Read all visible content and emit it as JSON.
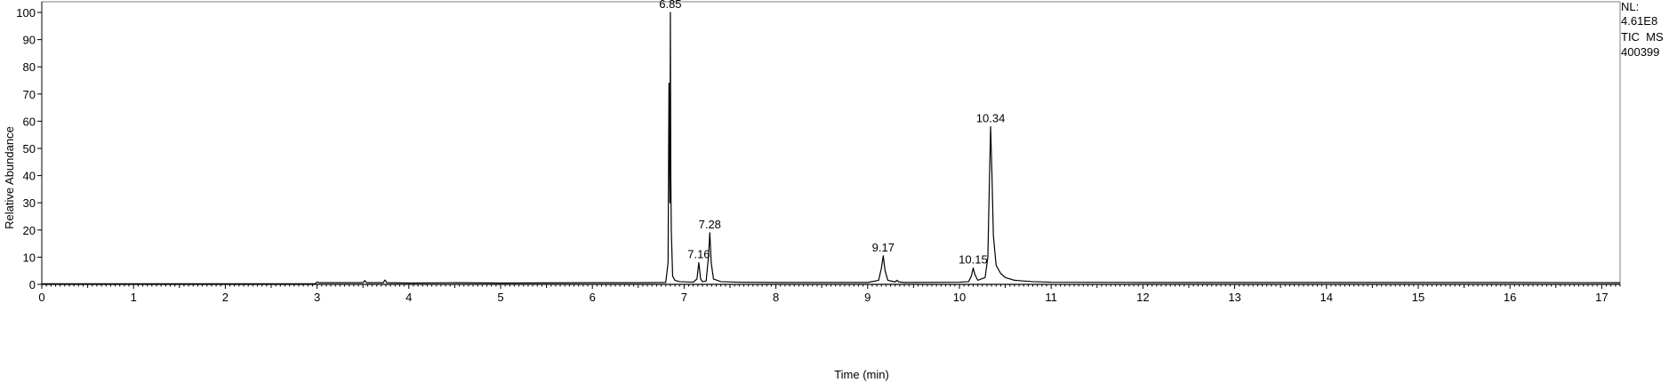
{
  "chart_data": {
    "type": "line",
    "title": "",
    "xlabel": "Time (min)",
    "ylabel": "Relative Abundance",
    "xlim": [
      0,
      17.2
    ],
    "ylim": [
      0,
      100
    ],
    "x_ticks": [
      0,
      1,
      2,
      3,
      4,
      5,
      6,
      7,
      8,
      9,
      10,
      11,
      12,
      13,
      14,
      15,
      16,
      17
    ],
    "y_ticks": [
      0,
      10,
      20,
      30,
      40,
      50,
      60,
      70,
      80,
      90,
      100
    ],
    "grid": false,
    "info": {
      "nl_label": "NL:",
      "nl_value": "4.61E8",
      "scan_type": "TIC  MS",
      "sample": "400399"
    },
    "peaks": [
      {
        "rt": 6.85,
        "label": "6.85",
        "height": 100
      },
      {
        "rt": 7.16,
        "label": "7.16",
        "height": 8
      },
      {
        "rt": 7.28,
        "label": "7.28",
        "height": 19
      },
      {
        "rt": 9.17,
        "label": "9.17",
        "height": 10.5
      },
      {
        "rt": 10.15,
        "label": "10.15",
        "height": 6
      },
      {
        "rt": 10.34,
        "label": "10.34",
        "height": 58
      }
    ],
    "series": [
      {
        "name": "TIC",
        "x": [
          0,
          2.98,
          3.0,
          3.02,
          3.5,
          3.52,
          3.54,
          3.72,
          3.74,
          3.76,
          4.0,
          4.5,
          5.0,
          6.0,
          6.5,
          6.8,
          6.825,
          6.835,
          6.845,
          6.85,
          6.855,
          6.86,
          6.875,
          6.9,
          6.95,
          7.1,
          7.14,
          7.16,
          7.18,
          7.2,
          7.24,
          7.265,
          7.28,
          7.295,
          7.32,
          7.4,
          7.6,
          8.0,
          9.0,
          9.12,
          9.15,
          9.17,
          9.19,
          9.22,
          9.3,
          9.32,
          9.34,
          9.4,
          10.0,
          10.1,
          10.13,
          10.15,
          10.17,
          10.2,
          10.28,
          10.31,
          10.325,
          10.34,
          10.355,
          10.37,
          10.4,
          10.45,
          10.5,
          10.6,
          10.8,
          11.0,
          12.0,
          13.0,
          14.0,
          15.0,
          16.0,
          17.2
        ],
        "y": [
          0.2,
          0.2,
          0.9,
          0.6,
          0.6,
          1.4,
          0.6,
          0.6,
          1.6,
          0.6,
          0.5,
          0.6,
          0.5,
          0.6,
          0.6,
          0.7,
          8.0,
          74.0,
          30.0,
          100.0,
          40.0,
          20.0,
          3.0,
          1.5,
          1.0,
          0.8,
          2.0,
          8.0,
          2.0,
          1.0,
          1.2,
          10.0,
          19.0,
          8.0,
          2.0,
          1.0,
          0.8,
          0.7,
          0.7,
          1.5,
          6.0,
          10.5,
          5.0,
          1.5,
          0.9,
          1.5,
          0.9,
          0.7,
          0.8,
          1.0,
          3.0,
          6.0,
          3.5,
          1.5,
          2.5,
          10.0,
          35.0,
          58.0,
          40.0,
          18.0,
          7.0,
          4.0,
          2.5,
          1.5,
          1.0,
          0.8,
          0.7,
          0.7,
          0.7,
          0.7,
          0.7,
          0.6
        ]
      }
    ]
  }
}
